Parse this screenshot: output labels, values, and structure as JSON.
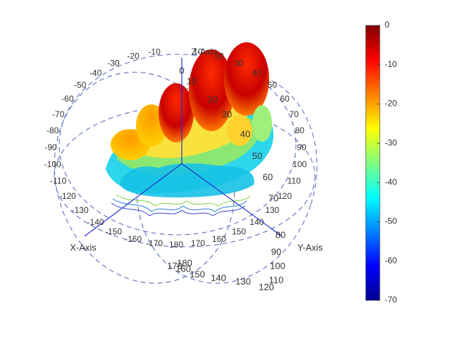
{
  "chart_data": {
    "type": "3d-radiation-pattern",
    "axes": {
      "x_label": "X-Axis",
      "y_label": "Y-Axis",
      "z_label": "Z-Axis"
    },
    "elevation_ticks": [
      "0",
      "10",
      "20",
      "30",
      "40",
      "50",
      "60",
      "70",
      "80",
      "90",
      "100",
      "110",
      "120",
      "130",
      "140",
      "150",
      "160",
      "170",
      "180"
    ],
    "azimuth_ticks": [
      "10",
      "20",
      "30",
      "40",
      "50",
      "60",
      "70",
      "80",
      "90",
      "100",
      "110",
      "120",
      "130",
      "140",
      "150",
      "160",
      "170",
      "180",
      "-170",
      "-160",
      "-150",
      "-140",
      "-130",
      "-120",
      "-110",
      "-100",
      "-90",
      "-80",
      "-70",
      "-60",
      "-50",
      "-40",
      "-30",
      "-20",
      "-10"
    ],
    "colorbar": {
      "min": -70,
      "max": 0,
      "ticks": [
        0,
        -10,
        -20,
        -30,
        -40,
        -50,
        -60,
        -70
      ],
      "colormap": "jet",
      "colormap_stops": [
        "#00008f",
        "#0000ff",
        "#0080ff",
        "#00ffff",
        "#80ff80",
        "#ffff00",
        "#ff8000",
        "#ff0000",
        "#800000"
      ]
    }
  }
}
